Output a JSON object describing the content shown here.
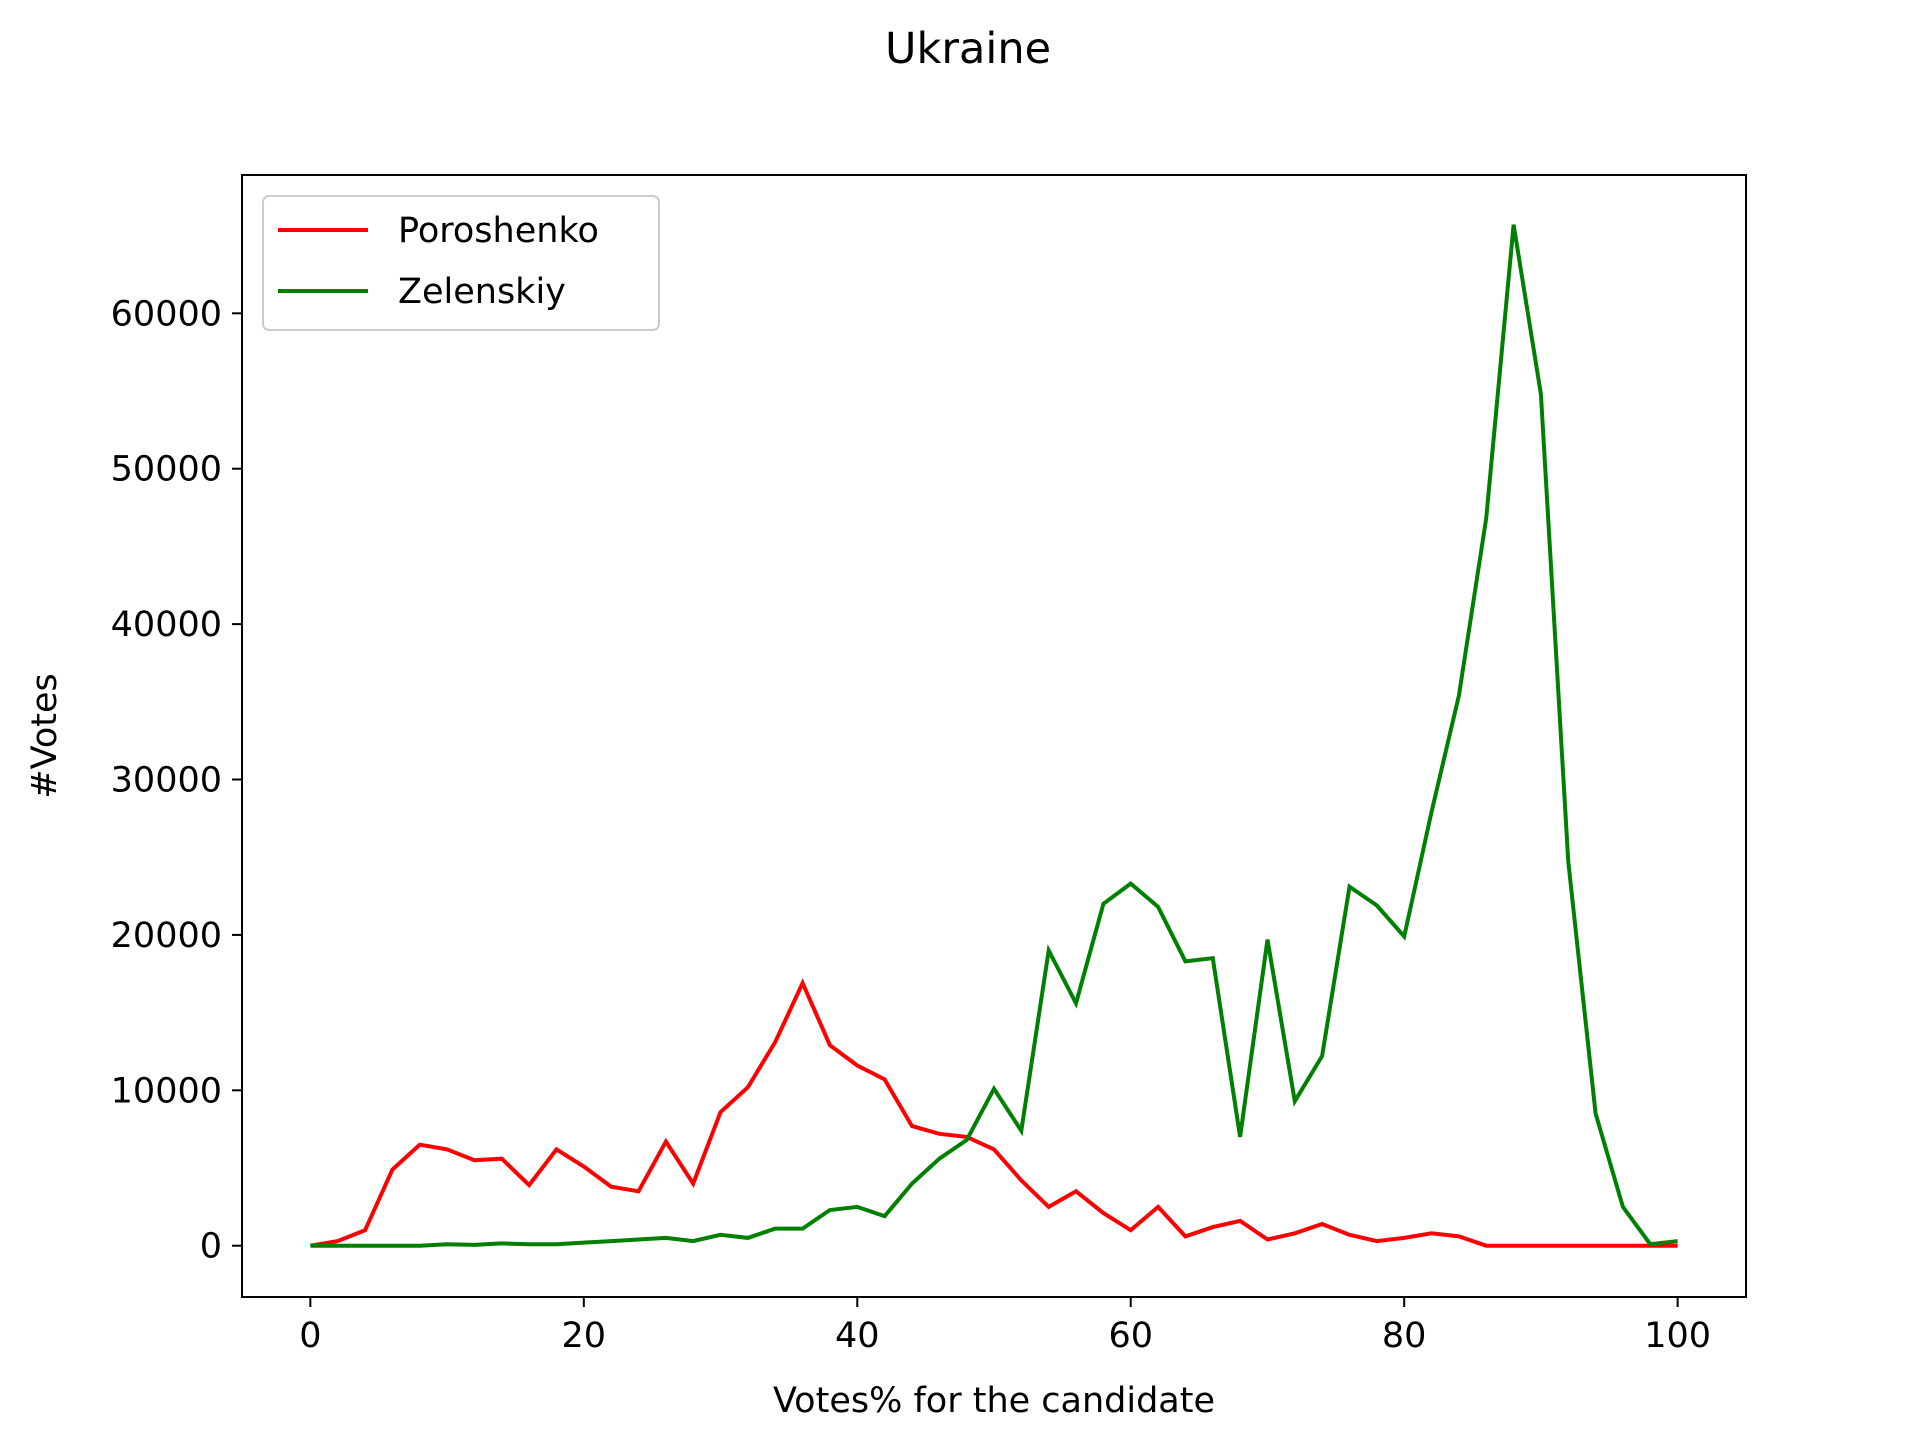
{
  "chart_data": {
    "type": "line",
    "title": "Ukraine",
    "xlabel": "Votes% for the candidate",
    "ylabel": "#Votes",
    "xlim": [
      -5,
      105
    ],
    "ylim": [
      -3300,
      68900
    ],
    "xticks": [
      0,
      20,
      40,
      60,
      80,
      100
    ],
    "yticks": [
      0,
      10000,
      20000,
      30000,
      40000,
      50000,
      60000
    ],
    "grid": false,
    "legend_position": "top-left",
    "x": [
      0,
      2,
      4,
      6,
      8,
      10,
      12,
      14,
      16,
      18,
      20,
      22,
      24,
      26,
      28,
      30,
      32,
      34,
      36,
      38,
      40,
      42,
      44,
      46,
      48,
      50,
      52,
      54,
      56,
      58,
      60,
      62,
      64,
      66,
      68,
      70,
      72,
      74,
      76,
      78,
      80,
      82,
      84,
      86,
      88,
      90,
      92,
      94,
      96,
      98,
      100
    ],
    "series": [
      {
        "name": "Poroshenko",
        "color": "#ff0000",
        "values": [
          0,
          300,
          1000,
          4900,
          6500,
          6200,
          5500,
          5600,
          3900,
          6200,
          5100,
          3800,
          3500,
          6700,
          4000,
          8600,
          10200,
          13100,
          16900,
          12900,
          11600,
          10700,
          7700,
          7200,
          7000,
          6200,
          4200,
          2500,
          3500,
          2100,
          1000,
          2500,
          600,
          1200,
          1600,
          400,
          800,
          1400,
          700,
          300,
          500,
          800,
          600,
          0,
          0,
          0,
          0,
          0,
          0,
          0,
          0
        ]
      },
      {
        "name": "Zelenskiy",
        "color": "#008000",
        "values": [
          0,
          0,
          0,
          0,
          0,
          100,
          50,
          150,
          100,
          100,
          200,
          300,
          400,
          500,
          300,
          700,
          500,
          1100,
          1100,
          2300,
          2500,
          1900,
          4000,
          5600,
          6800,
          10100,
          7400,
          19000,
          15600,
          22000,
          23300,
          21800,
          18300,
          18500,
          7000,
          19700,
          9300,
          12200,
          23100,
          21900,
          19900,
          27900,
          35400,
          46800,
          65700,
          54800,
          24700,
          8500,
          2500,
          100,
          300
        ]
      }
    ]
  }
}
